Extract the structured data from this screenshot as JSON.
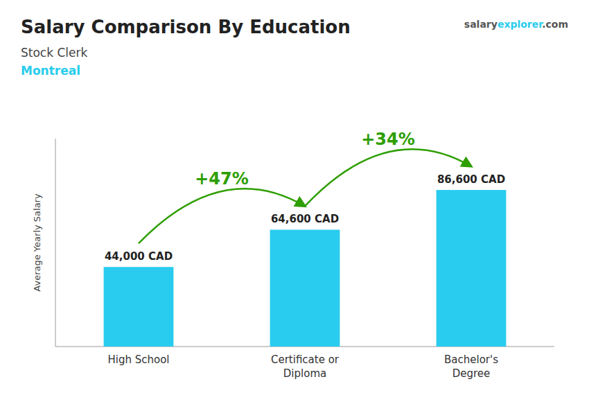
{
  "chart_data": {
    "type": "bar",
    "title": "Salary Comparison By Education",
    "subtitle": [
      "Stock Clerk",
      "Montreal"
    ],
    "watermark": [
      "salary",
      "explorer",
      ".com"
    ],
    "ylabel": "Average Yearly Salary",
    "categories": [
      "High School",
      "Certificate or\nDiploma",
      "Bachelor's\nDegree"
    ],
    "values": [
      44000,
      64600,
      86600
    ],
    "value_labels": [
      "44,000 CAD",
      "64,600 CAD",
      "86,600 CAD"
    ],
    "annotations": [
      {
        "text": "+47%",
        "color": "#2e9e00"
      },
      {
        "text": "+34%",
        "color": "#2e9e00"
      }
    ],
    "color": "#29ccee",
    "ylim": [
      0,
      115000
    ],
    "grid": false,
    "data_labels": true,
    "tick_labels": "x"
  }
}
